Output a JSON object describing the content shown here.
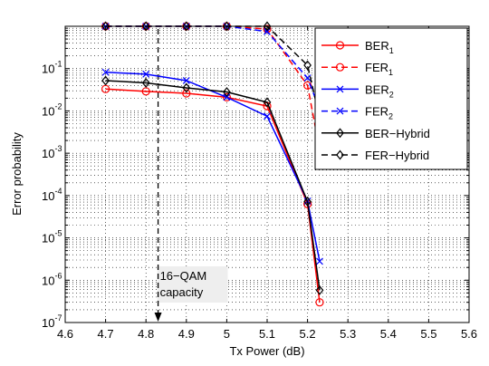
{
  "chart_data": {
    "type": "line",
    "xlabel": "Tx Power (dB)",
    "ylabel": "Error probability",
    "xlim": [
      4.6,
      5.6
    ],
    "ylim_log10": [
      -7,
      0
    ],
    "y_scale": "log",
    "grid": true,
    "legend_position": "top-right",
    "x_ticks": [
      "4.6",
      "4.7",
      "4.8",
      "4.9",
      "5",
      "5.1",
      "5.2",
      "5.3",
      "5.4",
      "5.5",
      "5.6"
    ],
    "series": [
      {
        "name": "BER1",
        "name_base": "BER",
        "name_sub": "1",
        "color": "#ff0000",
        "style": "solid",
        "marker": "circle",
        "x": [
          4.7,
          4.8,
          4.9,
          5.0,
          5.1,
          5.2,
          5.23
        ],
        "y": [
          0.033,
          0.029,
          0.026,
          0.021,
          0.013,
          6.3e-05,
          3e-07
        ]
      },
      {
        "name": "FER1",
        "name_base": "FER",
        "name_sub": "1",
        "color": "#ff0000",
        "style": "dashed",
        "marker": "circle",
        "x": [
          4.7,
          4.8,
          4.9,
          5.0,
          5.1,
          5.2,
          5.23
        ],
        "y": [
          1,
          1,
          1,
          1,
          0.86,
          0.04,
          0.0012
        ]
      },
      {
        "name": "BER2",
        "name_base": "BER",
        "name_sub": "2",
        "color": "#0000ff",
        "style": "solid",
        "marker": "x",
        "x": [
          4.7,
          4.8,
          4.9,
          5.0,
          5.1,
          5.2,
          5.23
        ],
        "y": [
          0.082,
          0.074,
          0.052,
          0.021,
          0.0075,
          7.4e-05,
          2.8e-06
        ]
      },
      {
        "name": "FER2",
        "name_base": "FER",
        "name_sub": "2",
        "color": "#0000ff",
        "style": "dashed",
        "marker": "x",
        "x": [
          4.7,
          4.8,
          4.9,
          5.0,
          5.1,
          5.2,
          5.23
        ],
        "y": [
          1,
          1,
          1,
          1,
          0.75,
          0.06,
          0.011
        ]
      },
      {
        "name": "BER−Hybrid",
        "name_base": "BER−Hybrid",
        "name_sub": "",
        "color": "#000000",
        "style": "solid",
        "marker": "diamond",
        "x": [
          4.7,
          4.8,
          4.9,
          5.0,
          5.1,
          5.2,
          5.23
        ],
        "y": [
          0.052,
          0.046,
          0.035,
          0.028,
          0.016,
          7.2e-05,
          5.8e-07
        ]
      },
      {
        "name": "FER−Hybrid",
        "name_base": "FER−Hybrid",
        "name_sub": "",
        "color": "#000000",
        "style": "dashed",
        "marker": "diamond",
        "x": [
          4.7,
          4.8,
          4.9,
          5.0,
          5.1,
          5.2,
          5.23
        ],
        "y": [
          1,
          1,
          1,
          1,
          1,
          0.12,
          0.0068
        ]
      }
    ],
    "annotation": {
      "lines": [
        "16−QAM",
        "capacity"
      ],
      "x": 4.83,
      "arrow": "dashed vertical arrow pointing down to the x-axis"
    }
  }
}
